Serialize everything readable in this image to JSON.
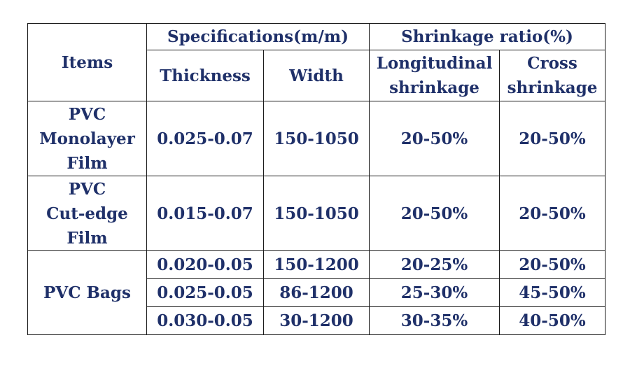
{
  "header": {
    "items": "Items",
    "specifications": "Specifications(m/m)",
    "shrinkage_ratio": "Shrinkage ratio(%)",
    "thickness": "Thickness",
    "width": "Width",
    "longitudinal_line1": "Longitudinal",
    "longitudinal_line2": "shrinkage",
    "cross_line1": "Cross",
    "cross_line2": "shrinkage"
  },
  "rows": {
    "monolayer": {
      "item_line1": "PVC",
      "item_line2": "Monolayer",
      "item_line3": "Film",
      "thickness": "0.025-0.07",
      "width": "150-1050",
      "longitudinal": "20-50%",
      "cross": "20-50%"
    },
    "cut_edge": {
      "item_line1": "PVC",
      "item_line2": "Cut-edge",
      "item_line3": "Film",
      "thickness": "0.015-0.07",
      "width": "150-1050",
      "longitudinal": "20-50%",
      "cross": "20-50%"
    },
    "bags": {
      "item": "PVC Bags",
      "variants": [
        {
          "thickness": "0.020-0.05",
          "width": "150-1200",
          "longitudinal": "20-25%",
          "cross": "20-50%"
        },
        {
          "thickness": "0.025-0.05",
          "width": "86-1200",
          "longitudinal": "25-30%",
          "cross": "45-50%"
        },
        {
          "thickness": "0.030-0.05",
          "width": "30-1200",
          "longitudinal": "30-35%",
          "cross": "40-50%"
        }
      ]
    }
  }
}
